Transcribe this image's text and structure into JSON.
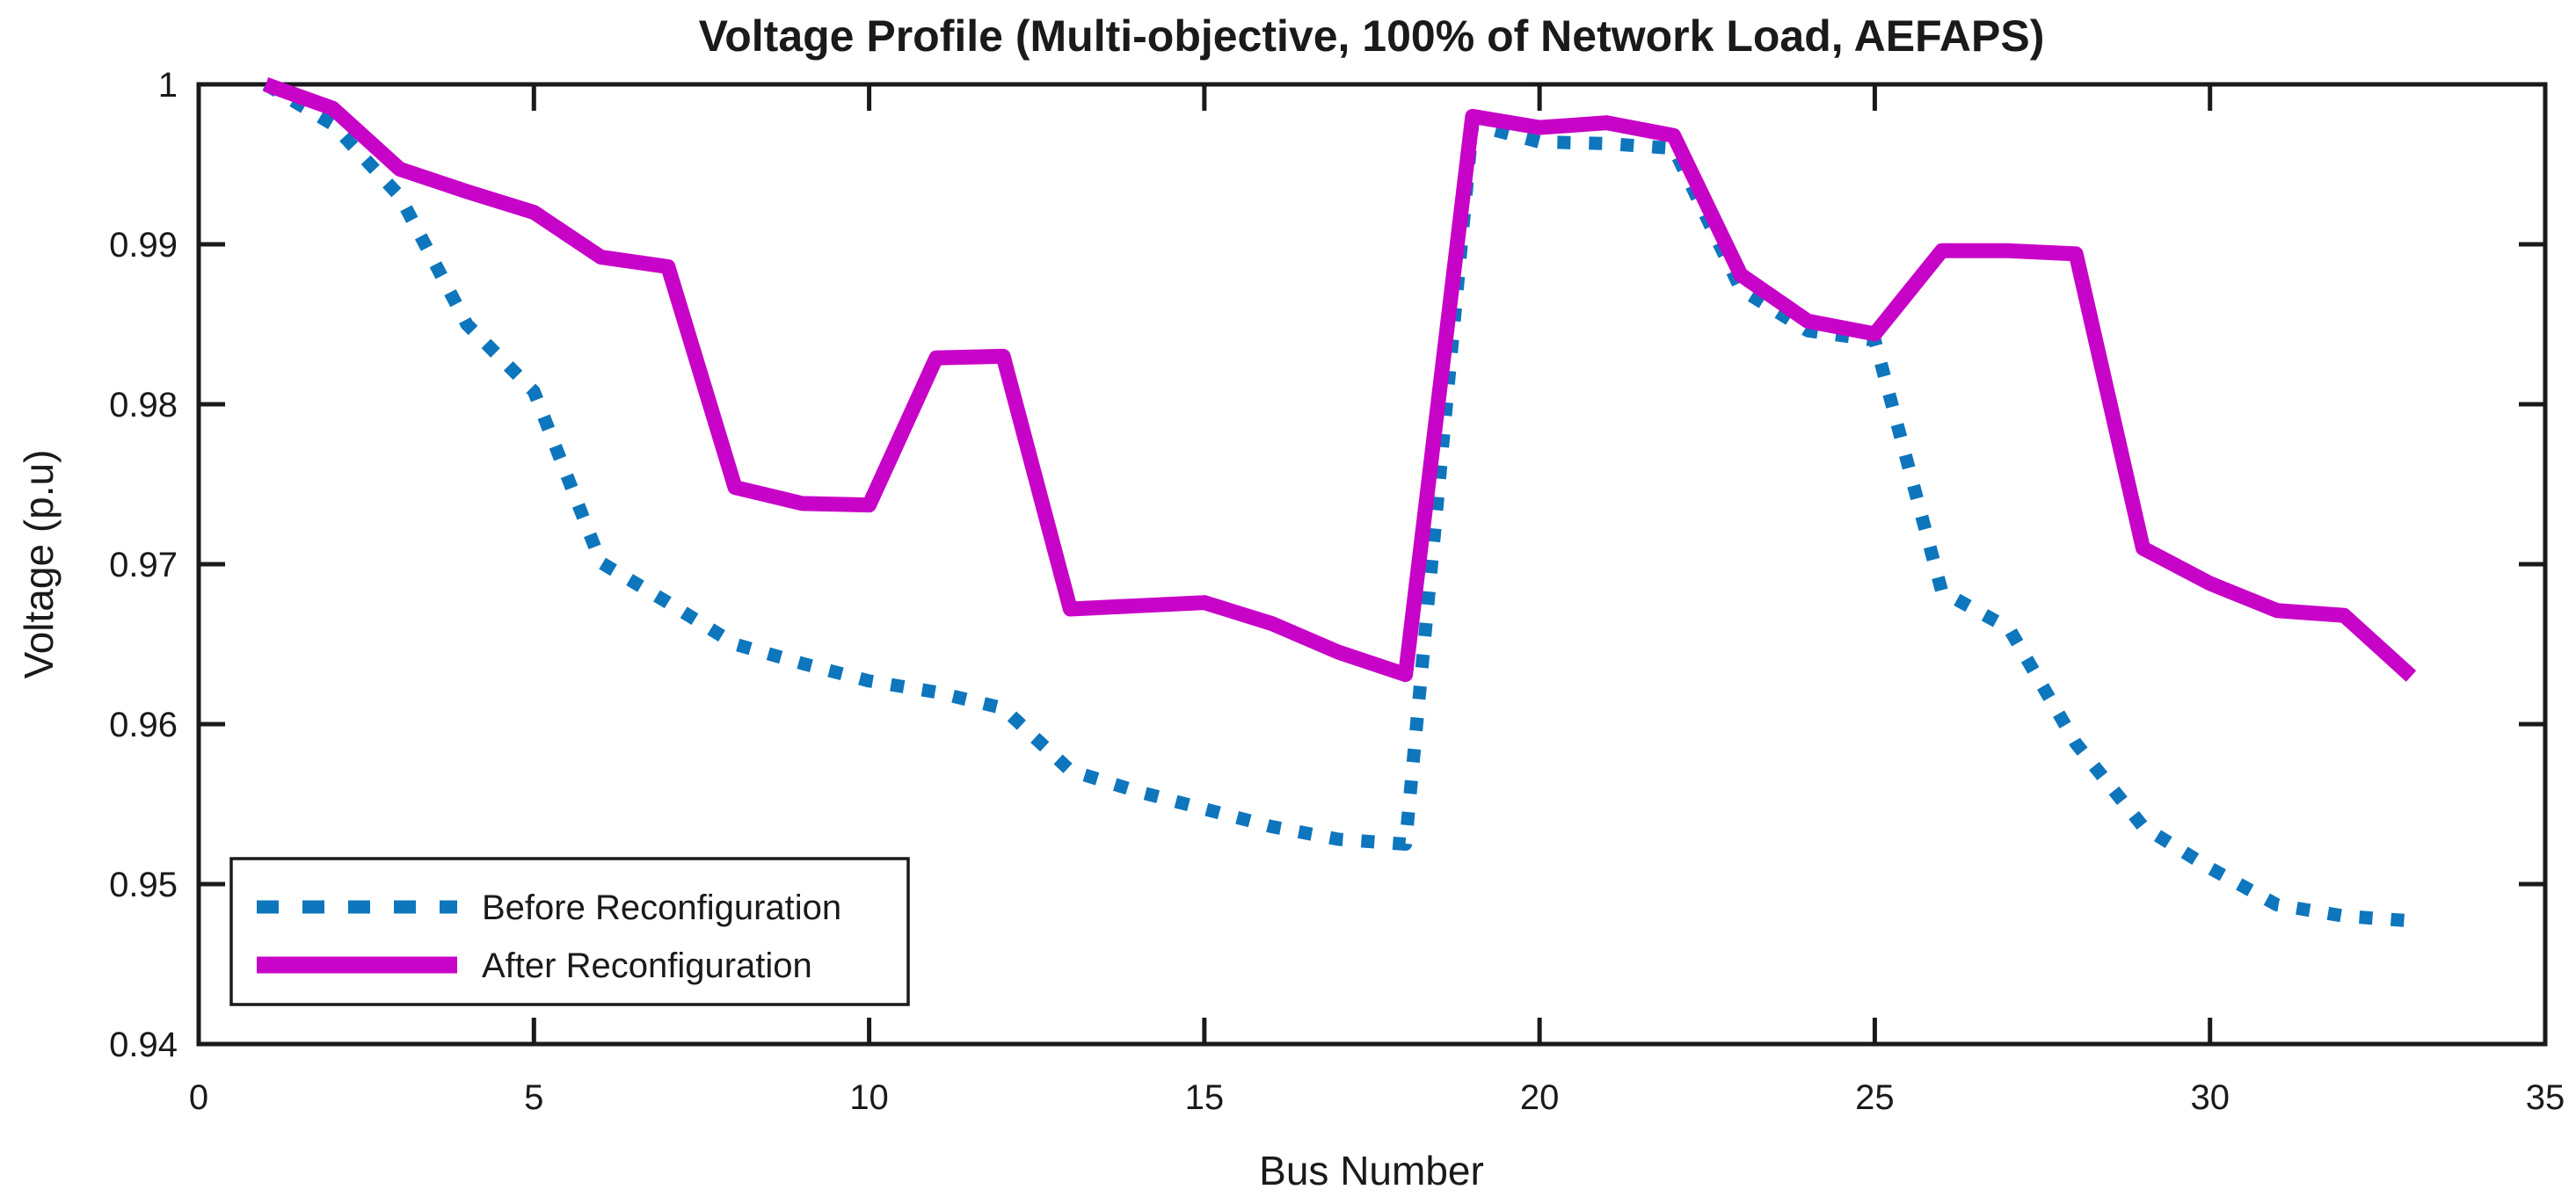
{
  "chart_data": {
    "type": "line",
    "title": "Voltage Profile (Multi-objective, 100% of Network Load, AEFAPS)",
    "xlabel": "Bus Number",
    "ylabel": "Voltage (p.u)",
    "xlim": [
      0,
      35
    ],
    "ylim": [
      0.94,
      1.0
    ],
    "grid": false,
    "legend_position": "lower-left",
    "x_ticks": [
      0,
      5,
      10,
      15,
      20,
      25,
      30,
      35
    ],
    "x_tick_labels": [
      "0",
      "5",
      "10",
      "15",
      "20",
      "25",
      "30",
      "35"
    ],
    "y_ticks": [
      0.94,
      0.95,
      0.96,
      0.97,
      0.98,
      0.99,
      1.0
    ],
    "y_tick_labels": [
      "0.94",
      "0.95",
      "0.96",
      "0.97",
      "0.98",
      "0.99",
      "1"
    ],
    "x": [
      1,
      2,
      3,
      4,
      5,
      6,
      7,
      8,
      9,
      10,
      11,
      12,
      13,
      14,
      15,
      16,
      17,
      18,
      19,
      20,
      21,
      22,
      23,
      24,
      25,
      26,
      27,
      28,
      29,
      30,
      31,
      32,
      33
    ],
    "series": [
      {
        "name": "Before Reconfiguration",
        "color": "#0e76bd",
        "style": "dotted",
        "values": [
          1.0,
          0.9975,
          0.993,
          0.985,
          0.9808,
          0.9701,
          0.9676,
          0.965,
          0.9638,
          0.9627,
          0.962,
          0.961,
          0.9571,
          0.9558,
          0.9547,
          0.9536,
          0.9528,
          0.9525,
          0.9975,
          0.9964,
          0.9963,
          0.996,
          0.9872,
          0.9846,
          0.984,
          0.9683,
          0.966,
          0.9588,
          0.9536,
          0.951,
          0.9487,
          0.948,
          0.9477
        ]
      },
      {
        "name": "After Reconfiguration",
        "color": "#c803c8",
        "style": "solid",
        "values": [
          1.0,
          0.9985,
          0.9947,
          0.9933,
          0.992,
          0.9892,
          0.9886,
          0.9748,
          0.9738,
          0.9737,
          0.9829,
          0.983,
          0.9672,
          0.9674,
          0.9676,
          0.9663,
          0.9645,
          0.9631,
          0.998,
          0.9973,
          0.9976,
          0.9968,
          0.9881,
          0.9852,
          0.9844,
          0.9896,
          0.9896,
          0.9894,
          0.971,
          0.9688,
          0.9671,
          0.9668,
          0.963
        ]
      }
    ],
    "axis_color": "#1a1a1a",
    "background_color": "#ffffff"
  }
}
